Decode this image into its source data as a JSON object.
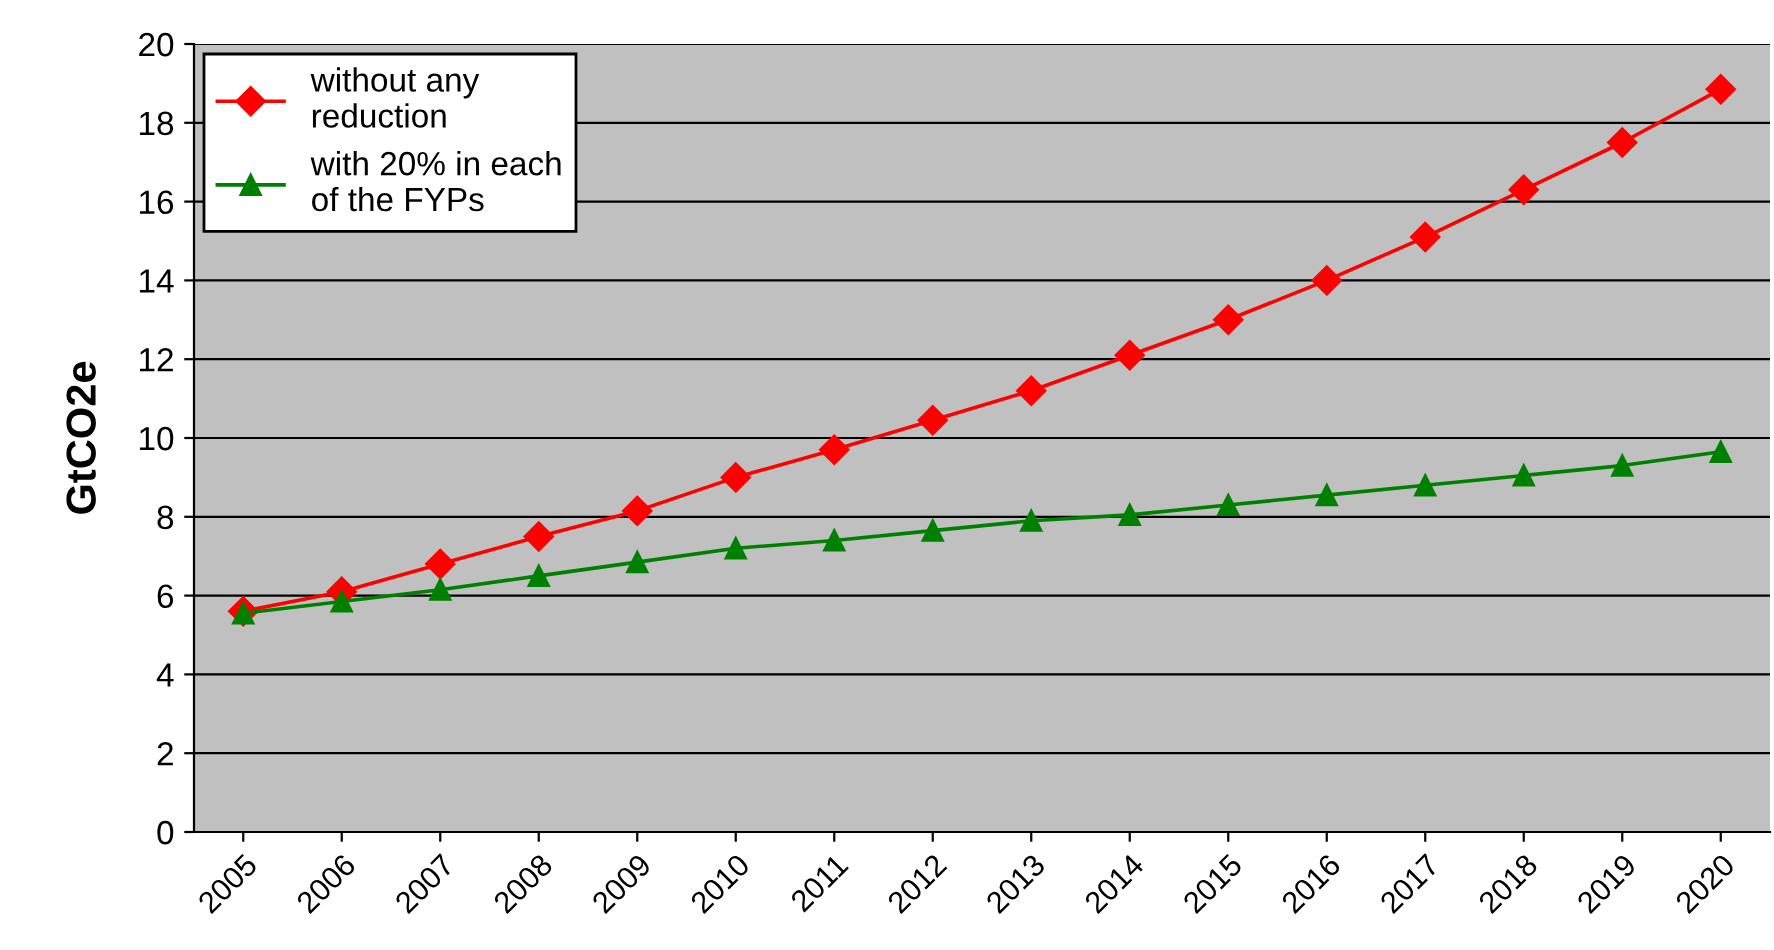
{
  "chart_data": {
    "type": "line",
    "ylabel": "GtCO2e",
    "categories": [
      "2005",
      "2006",
      "2007",
      "2008",
      "2009",
      "2010",
      "2011",
      "2012",
      "2013",
      "2014",
      "2015",
      "2016",
      "2017",
      "2018",
      "2019",
      "2020"
    ],
    "series": [
      {
        "name": "without any\nreduction",
        "color": "#ff0000",
        "marker": "diamond",
        "values": [
          5.6,
          6.1,
          6.8,
          7.5,
          8.15,
          9.0,
          9.7,
          10.45,
          11.2,
          12.1,
          13.0,
          14.0,
          15.1,
          16.3,
          17.5,
          18.85
        ]
      },
      {
        "name": "with 20% in each\nof the FYPs",
        "color": "#008000",
        "marker": "triangle",
        "values": [
          5.55,
          5.85,
          6.15,
          6.5,
          6.85,
          7.2,
          7.4,
          7.65,
          7.9,
          8.05,
          8.3,
          8.55,
          8.8,
          9.05,
          9.3,
          9.65
        ]
      }
    ],
    "ylim": [
      0,
      20
    ],
    "yticks": [
      0,
      2,
      4,
      6,
      8,
      10,
      12,
      14,
      16,
      18,
      20
    ],
    "grid": "y",
    "legend": "top left"
  }
}
